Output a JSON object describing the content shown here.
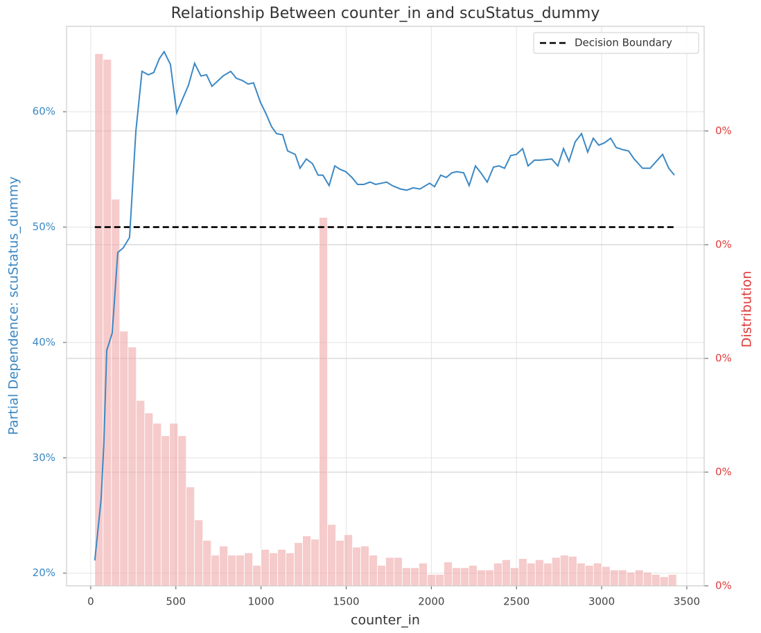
{
  "chart_data": {
    "type": "line",
    "title": "Relationship Between counter_in and scuStatus_dummy",
    "x_label": "counter_in",
    "y_label": "Partial Dependence: scuStatus_dummy",
    "y2_label": "Distribution",
    "xlim": [
      -142,
      3602
    ],
    "xticks": [
      0,
      500,
      1000,
      1500,
      2000,
      2500,
      3000,
      3500
    ],
    "ylim": [
      18.9,
      67.4
    ],
    "yticks": [
      {
        "value": 20,
        "label": "20%"
      },
      {
        "value": 30,
        "label": "30%"
      },
      {
        "value": 40,
        "label": "40%"
      },
      {
        "value": 50,
        "label": "50%"
      },
      {
        "value": 60,
        "label": "60%"
      }
    ],
    "y2lim": [
      0,
      0.00492
    ],
    "y2ticks": [
      {
        "value": 0,
        "label": "0%"
      },
      {
        "value": 0.001,
        "label": "0%"
      },
      {
        "value": 0.002,
        "label": "0%"
      },
      {
        "value": 0.003,
        "label": "0%"
      },
      {
        "value": 0.004,
        "label": "0%"
      }
    ],
    "grid": true,
    "legend_position": "upper-right",
    "x": [
      24,
      61,
      77,
      94,
      126,
      159,
      191,
      228,
      265,
      301,
      338,
      370,
      403,
      431,
      468,
      505,
      545,
      574,
      610,
      647,
      680,
      712,
      741,
      777,
      822,
      855,
      891,
      924,
      956,
      997,
      1030,
      1062,
      1091,
      1127,
      1156,
      1201,
      1229,
      1266,
      1302,
      1335,
      1363,
      1400,
      1433,
      1465,
      1498,
      1534,
      1567,
      1604,
      1640,
      1673,
      1738,
      1770,
      1819,
      1856,
      1893,
      1933,
      1990,
      2019,
      2055,
      2088,
      2120,
      2149,
      2190,
      2222,
      2259,
      2291,
      2328,
      2365,
      2397,
      2430,
      2466,
      2499,
      2536,
      2568,
      2605,
      2637,
      2707,
      2743,
      2776,
      2808,
      2845,
      2882,
      2918,
      2951,
      2983,
      3016,
      3053,
      3085,
      3126,
      3158,
      3191,
      3240,
      3285,
      3321,
      3358,
      3394,
      3427
    ],
    "series": [
      {
        "color": "#3b88c4",
        "values": [
          21.1,
          26.4,
          31.2,
          39.3,
          40.8,
          47.8,
          48.2,
          49.1,
          58.3,
          63.5,
          63.2,
          63.4,
          64.6,
          65.2,
          64.1,
          59.9,
          61.3,
          62.3,
          64.2,
          63.1,
          63.2,
          62.2,
          62.6,
          63.1,
          63.5,
          62.9,
          62.7,
          62.4,
          62.5,
          60.8,
          59.8,
          58.7,
          58.1,
          58.0,
          56.6,
          56.3,
          55.1,
          55.9,
          55.5,
          54.5,
          54.5,
          53.6,
          55.3,
          55.0,
          54.8,
          54.3,
          53.7,
          53.7,
          53.9,
          53.7,
          53.9,
          53.6,
          53.3,
          53.2,
          53.4,
          53.3,
          53.8,
          53.5,
          54.5,
          54.3,
          54.7,
          54.8,
          54.7,
          53.6,
          55.3,
          54.7,
          53.9,
          55.2,
          55.3,
          55.1,
          56.2,
          56.3,
          56.8,
          55.3,
          55.8,
          55.8,
          55.9,
          55.3,
          56.8,
          55.7,
          57.4,
          58.1,
          56.5,
          57.7,
          57.1,
          57.3,
          57.7,
          56.9,
          56.7,
          56.6,
          55.9,
          55.1,
          55.1,
          55.7,
          56.3,
          55.1,
          54.5
        ]
      }
    ],
    "reference_line": {
      "name": "Decision Boundary",
      "value": 50,
      "x": [
        24,
        3440
      ],
      "color": "#000000"
    },
    "histogram": {
      "axis": "y2",
      "color": "#f0a8a8",
      "bins": [
        24,
        72.8,
        121.6,
        170.4,
        219.2,
        268,
        316.8,
        365.6,
        414.4,
        463.2,
        512,
        560.8,
        609.6,
        658.4,
        707.2,
        756,
        804.8,
        853.6,
        902.4,
        951.2,
        1000,
        1048.8,
        1097.6,
        1146.4,
        1195.2,
        1244,
        1292.8,
        1341.6,
        1390.4,
        1439.2,
        1488,
        1536.8,
        1585.6,
        1634.4,
        1683.2,
        1732,
        1780.8,
        1829.6,
        1878.4,
        1927.2,
        1976,
        2024.8,
        2073.6,
        2122.4,
        2171.2,
        2220,
        2268.8,
        2317.6,
        2366.4,
        2415.2,
        2464,
        2512.8,
        2561.6,
        2610.4,
        2659.2,
        2708,
        2756.8,
        2805.6,
        2854.4,
        2903.2,
        2952,
        3000.8,
        3049.6,
        3098.4,
        3147.2,
        3196,
        3244.8,
        3293.6,
        3342.4,
        3391.2,
        3440
      ],
      "counts": [
        0.00468,
        0.00463,
        0.0034,
        0.00224,
        0.0021,
        0.00163,
        0.00152,
        0.00143,
        0.00132,
        0.00143,
        0.00132,
        0.00087,
        0.00058,
        0.0004,
        0.00027,
        0.00035,
        0.00027,
        0.00027,
        0.00029,
        0.00018,
        0.00032,
        0.00029,
        0.00032,
        0.00029,
        0.00038,
        0.00044,
        0.00041,
        0.00324,
        0.00054,
        0.0004,
        0.00045,
        0.00034,
        0.00035,
        0.00027,
        0.00018,
        0.00025,
        0.00025,
        0.00016,
        0.00016,
        0.0002,
        0.0001,
        0.0001,
        0.00021,
        0.00016,
        0.00016,
        0.00018,
        0.00014,
        0.00014,
        0.0002,
        0.00023,
        0.00016,
        0.00024,
        0.0002,
        0.00023,
        0.0002,
        0.00025,
        0.00027,
        0.00026,
        0.0002,
        0.00018,
        0.0002,
        0.00017,
        0.00014,
        0.00014,
        0.00012,
        0.00014,
        0.00012,
        0.0001,
        8e-05,
        0.0001
      ]
    }
  }
}
